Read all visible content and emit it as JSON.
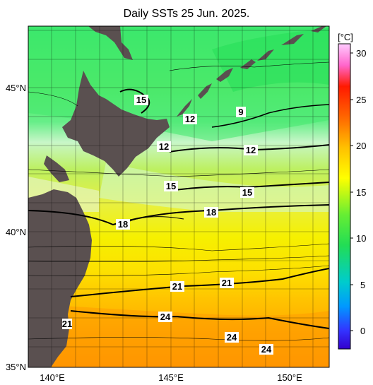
{
  "title": "Daily SSTs 25 Jun. 2025.",
  "unit": "[°C]",
  "lat_ticks": [
    "45°N",
    "40°N",
    "35°N"
  ],
  "lon_ticks": [
    "140°E",
    "145°E",
    "150°E"
  ],
  "colorbar_ticks": [
    "30",
    "25",
    "20",
    "15",
    "10",
    "5",
    "0"
  ],
  "isotherm_labels": [
    "15",
    "12",
    "9",
    "12",
    "12",
    "15",
    "15",
    "18",
    "18",
    "21",
    "21",
    "24",
    "24",
    "24",
    "21"
  ],
  "colors": {
    "land": "#5a5050",
    "warm": "#ff8a00",
    "yellow": "#f4f000",
    "green": "#22dd55",
    "cyan_green": "#99eecc"
  }
}
